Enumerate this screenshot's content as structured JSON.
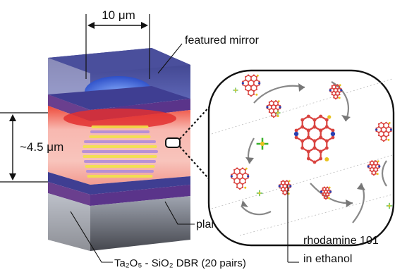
{
  "labels": {
    "width_dim": "10 μm",
    "gap_dim": "~4.5 μm",
    "featured_mirror": "featured mirror",
    "planar_mirror": "planar mirror",
    "dbr_label": "Ta₂O₅ - SiO₂ DBR (20 pairs)",
    "dye_line1": "rhodamine 101",
    "dye_line2": "in ethanol"
  },
  "colors": {
    "mirror_top_face": "#3b3c8e",
    "mirror_side_face": "#6a3f8e",
    "cavity_red": "#e83a3a",
    "cavity_pink": "#f7c9c4",
    "mode_yellow": "#f2e24a",
    "mode_purple": "#b08cd8",
    "dome_blue": "#3a64d8",
    "molecule_red": "#d9433f",
    "molecule_blue": "#2a3fb0",
    "molecule_yellow": "#e8c21e",
    "counterion_green": "#38b12b"
  }
}
